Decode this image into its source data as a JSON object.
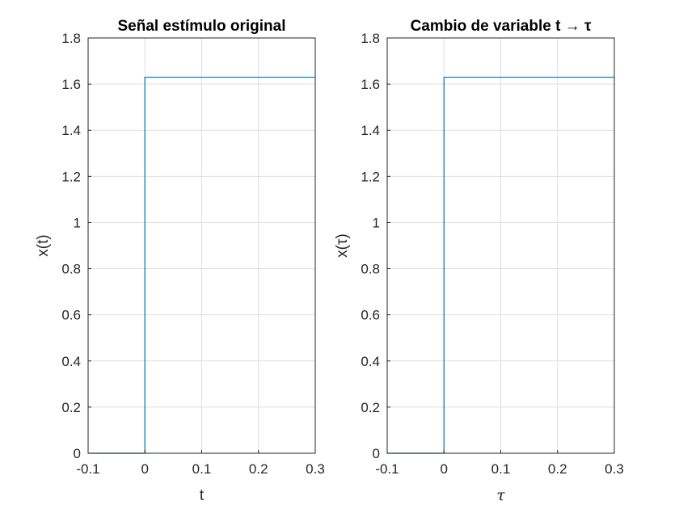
{
  "chart_data": [
    {
      "type": "line",
      "title": "Señal estímulo original",
      "xlabel": "t",
      "ylabel": "x(t)",
      "xlim": [
        -0.1,
        0.3
      ],
      "ylim": [
        0,
        1.8
      ],
      "grid": true,
      "x_ticks": [
        -0.1,
        0,
        0.1,
        0.2,
        0.3
      ],
      "y_ticks": [
        0,
        0.2,
        0.4,
        0.6,
        0.8,
        1,
        1.2,
        1.4,
        1.6,
        1.8
      ],
      "x_tick_labels": [
        "-0.1",
        "0",
        "0.1",
        "0.2",
        "0.3"
      ],
      "y_tick_labels": [
        "0",
        "0.2",
        "0.4",
        "0.6",
        "0.8",
        "1",
        "1.2",
        "1.4",
        "1.6",
        "1.8"
      ],
      "series": [
        {
          "x": [
            -0.1,
            0,
            0,
            0.3
          ],
          "y": [
            0,
            0,
            1.63,
            1.63
          ],
          "color": "#0072bd"
        }
      ]
    },
    {
      "type": "line",
      "title": "Cambio de variable t → τ",
      "xlabel": "τ",
      "ylabel": "x(τ)",
      "xlim": [
        -0.1,
        0.3
      ],
      "ylim": [
        0,
        1.8
      ],
      "grid": true,
      "x_ticks": [
        -0.1,
        0,
        0.1,
        0.2,
        0.3
      ],
      "y_ticks": [
        0,
        0.2,
        0.4,
        0.6,
        0.8,
        1,
        1.2,
        1.4,
        1.6,
        1.8
      ],
      "x_tick_labels": [
        "-0.1",
        "0",
        "0.1",
        "0.2",
        "0.3"
      ],
      "y_tick_labels": [
        "0",
        "0.2",
        "0.4",
        "0.6",
        "0.8",
        "1",
        "1.2",
        "1.4",
        "1.6",
        "1.8"
      ],
      "series": [
        {
          "x": [
            -0.1,
            0,
            0,
            0.3
          ],
          "y": [
            0,
            0,
            1.63,
            1.63
          ],
          "color": "#0072bd"
        }
      ]
    }
  ]
}
